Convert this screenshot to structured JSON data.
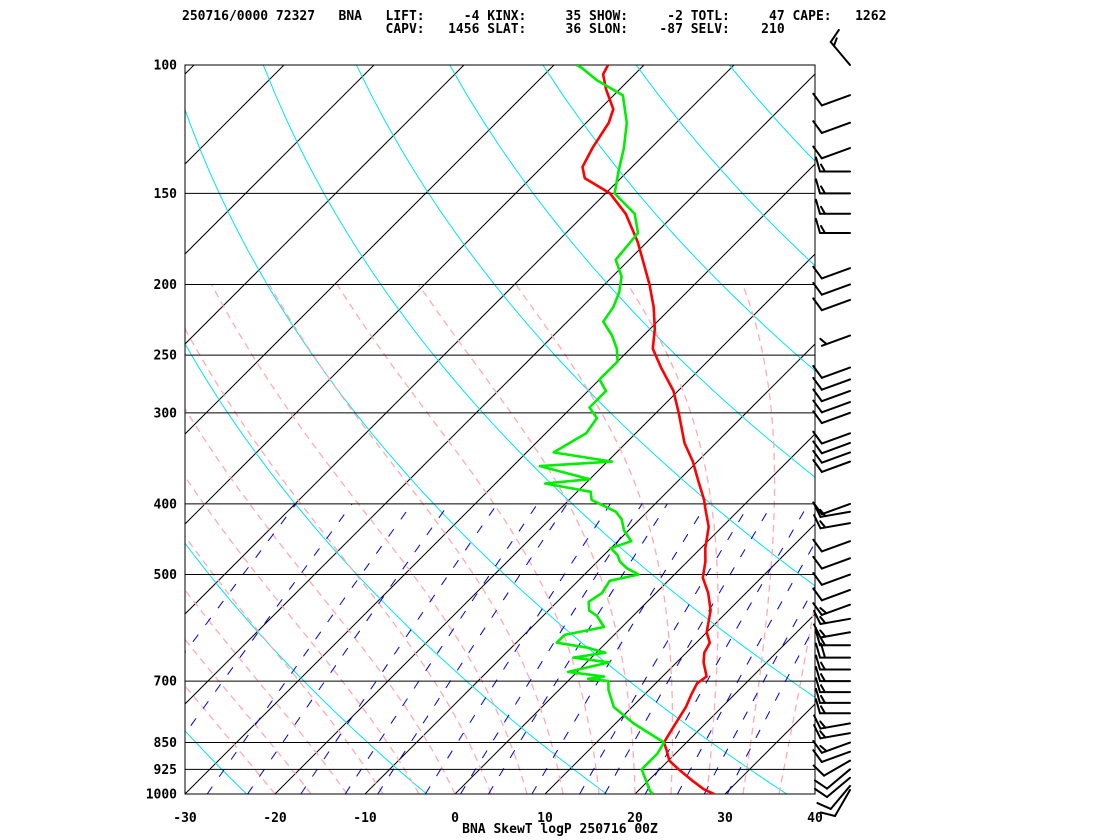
{
  "header": {
    "line1": "250716/0000 72327   BNA   LIFT:     -4 KINX:     35 SHOW:     -2 TOTL:     47 CAPE:   1262",
    "line2": "                          CAPV:   1456 SLAT:     36 SLON:    -87 SELV:    210"
  },
  "colors": {
    "temperature": "#ff0000",
    "dewpoint": "#00ee00",
    "isotherm": "#000000",
    "isobar": "#000000",
    "dry_adiabat": "#00e5ee",
    "moist_adiabat": "#ffaab4",
    "mixing_ratio": "#0000cc",
    "wind_barb": "#000000"
  },
  "chart_data": {
    "type": "line",
    "title": "BNA SkewT logP 250716 00Z",
    "xlabel": "",
    "ylabel": "",
    "xlim": [
      -30,
      40
    ],
    "ylim": [
      1000,
      100
    ],
    "y_scale": "log",
    "x_ticks": [
      "-30",
      "-20",
      "-10",
      "0",
      "10",
      "20",
      "30",
      "40"
    ],
    "y_ticks": [
      "100",
      "150",
      "200",
      "250",
      "300",
      "400",
      "500",
      "700",
      "850",
      "925",
      "1000"
    ],
    "grid": true,
    "series": [
      {
        "role": "temperature",
        "points": [
          [
            1000,
            28.8
          ],
          [
            985,
            27.1
          ],
          [
            960,
            25.0
          ],
          [
            925,
            22.1
          ],
          [
            900,
            20.1
          ],
          [
            870,
            18.6
          ],
          [
            850,
            17.5
          ],
          [
            820,
            17.0
          ],
          [
            790,
            16.5
          ],
          [
            760,
            16.0
          ],
          [
            730,
            15.2
          ],
          [
            705,
            14.6
          ],
          [
            690,
            14.9
          ],
          [
            660,
            13.0
          ],
          [
            640,
            12.0
          ],
          [
            620,
            11.5
          ],
          [
            600,
            10.0
          ],
          [
            560,
            8.0
          ],
          [
            530,
            5.8
          ],
          [
            505,
            3.5
          ],
          [
            480,
            2.0
          ],
          [
            460,
            0.5
          ],
          [
            430,
            -1.5
          ],
          [
            405,
            -4.0
          ],
          [
            395,
            -5.0
          ],
          [
            370,
            -8.0
          ],
          [
            350,
            -10.5
          ],
          [
            330,
            -13.5
          ],
          [
            300,
            -17.5
          ],
          [
            280,
            -20.5
          ],
          [
            260,
            -24.5
          ],
          [
            245,
            -27.5
          ],
          [
            230,
            -29.5
          ],
          [
            215,
            -32.0
          ],
          [
            200,
            -35.0
          ],
          [
            185,
            -38.5
          ],
          [
            175,
            -41.0
          ],
          [
            160,
            -45.5
          ],
          [
            150,
            -49.5
          ],
          [
            143,
            -54.0
          ],
          [
            138,
            -55.5
          ],
          [
            130,
            -56.5
          ],
          [
            120,
            -57.5
          ],
          [
            115,
            -58.5
          ],
          [
            108,
            -61.5
          ],
          [
            103,
            -63.5
          ],
          [
            100,
            -64.0
          ]
        ]
      },
      {
        "role": "dewpoint",
        "points": [
          [
            1000,
            22.0
          ],
          [
            990,
            21.3
          ],
          [
            925,
            18.0
          ],
          [
            880,
            18.0
          ],
          [
            850,
            17.5
          ],
          [
            800,
            12.0
          ],
          [
            760,
            8.0
          ],
          [
            720,
            5.5
          ],
          [
            700,
            4.5
          ],
          [
            695,
            2.0
          ],
          [
            690,
            3.5
          ],
          [
            680,
            -1.0
          ],
          [
            660,
            2.5
          ],
          [
            650,
            -2.0
          ],
          [
            640,
            1.0
          ],
          [
            630,
            -1.5
          ],
          [
            620,
            -5.5
          ],
          [
            605,
            -5.5
          ],
          [
            590,
            -2.0
          ],
          [
            570,
            -4.0
          ],
          [
            560,
            -5.5
          ],
          [
            545,
            -6.5
          ],
          [
            530,
            -6.0
          ],
          [
            510,
            -6.5
          ],
          [
            500,
            -4.0
          ],
          [
            490,
            -6.0
          ],
          [
            480,
            -7.5
          ],
          [
            470,
            -8.5
          ],
          [
            460,
            -10.0
          ],
          [
            450,
            -8.5
          ],
          [
            435,
            -10.5
          ],
          [
            420,
            -12.0
          ],
          [
            410,
            -13.5
          ],
          [
            395,
            -17.5
          ],
          [
            385,
            -18.5
          ],
          [
            375,
            -24.5
          ],
          [
            370,
            -20.0
          ],
          [
            355,
            -27.0
          ],
          [
            350,
            -19.5
          ],
          [
            340,
            -27.0
          ],
          [
            320,
            -25.5
          ],
          [
            305,
            -26.0
          ],
          [
            295,
            -28.0
          ],
          [
            280,
            -28.0
          ],
          [
            270,
            -30.0
          ],
          [
            255,
            -30.0
          ],
          [
            245,
            -31.5
          ],
          [
            235,
            -33.5
          ],
          [
            225,
            -36.0
          ],
          [
            215,
            -36.5
          ],
          [
            205,
            -37.5
          ],
          [
            195,
            -39.0
          ],
          [
            185,
            -41.5
          ],
          [
            170,
            -42.0
          ],
          [
            160,
            -44.5
          ],
          [
            150,
            -49.0
          ],
          [
            140,
            -51.0
          ],
          [
            130,
            -53.0
          ],
          [
            120,
            -55.5
          ],
          [
            110,
            -59.0
          ],
          [
            105,
            -63.5
          ],
          [
            101,
            -66.5
          ],
          [
            100,
            -67.5
          ]
        ]
      }
    ],
    "wind_barbs": [
      {
        "p": 1000,
        "dir": 210,
        "spd": 10
      },
      {
        "p": 975,
        "dir": 220,
        "spd": 10
      },
      {
        "p": 950,
        "dir": 230,
        "spd": 10
      },
      {
        "p": 925,
        "dir": 230,
        "spd": 10
      },
      {
        "p": 900,
        "dir": 240,
        "spd": 10
      },
      {
        "p": 875,
        "dir": 250,
        "spd": 10
      },
      {
        "p": 850,
        "dir": 250,
        "spd": 15
      },
      {
        "p": 825,
        "dir": 260,
        "spd": 15
      },
      {
        "p": 800,
        "dir": 260,
        "spd": 15
      },
      {
        "p": 775,
        "dir": 270,
        "spd": 15
      },
      {
        "p": 750,
        "dir": 270,
        "spd": 15
      },
      {
        "p": 725,
        "dir": 270,
        "spd": 15
      },
      {
        "p": 700,
        "dir": 270,
        "spd": 15
      },
      {
        "p": 675,
        "dir": 270,
        "spd": 15
      },
      {
        "p": 650,
        "dir": 270,
        "spd": 20
      },
      {
        "p": 625,
        "dir": 270,
        "spd": 15
      },
      {
        "p": 600,
        "dir": 260,
        "spd": 15
      },
      {
        "p": 575,
        "dir": 260,
        "spd": 15
      },
      {
        "p": 550,
        "dir": 250,
        "spd": 15
      },
      {
        "p": 525,
        "dir": 250,
        "spd": 10
      },
      {
        "p": 500,
        "dir": 250,
        "spd": 10
      },
      {
        "p": 475,
        "dir": 250,
        "spd": 10
      },
      {
        "p": 450,
        "dir": 250,
        "spd": 10
      },
      {
        "p": 425,
        "dir": 260,
        "spd": 15
      },
      {
        "p": 410,
        "dir": 260,
        "spd": 15
      },
      {
        "p": 400,
        "dir": 250,
        "spd": 10
      },
      {
        "p": 350,
        "dir": 250,
        "spd": 10
      },
      {
        "p": 340,
        "dir": 250,
        "spd": 10
      },
      {
        "p": 330,
        "dir": 250,
        "spd": 10
      },
      {
        "p": 320,
        "dir": 250,
        "spd": 10
      },
      {
        "p": 300,
        "dir": 250,
        "spd": 10
      },
      {
        "p": 290,
        "dir": 250,
        "spd": 10
      },
      {
        "p": 280,
        "dir": 250,
        "spd": 10
      },
      {
        "p": 270,
        "dir": 250,
        "spd": 10
      },
      {
        "p": 260,
        "dir": 250,
        "spd": 10
      },
      {
        "p": 235,
        "dir": 250,
        "spd": 5
      },
      {
        "p": 210,
        "dir": 250,
        "spd": 10
      },
      {
        "p": 200,
        "dir": 250,
        "spd": 10
      },
      {
        "p": 190,
        "dir": 250,
        "spd": 10
      },
      {
        "p": 170,
        "dir": 270,
        "spd": 15
      },
      {
        "p": 160,
        "dir": 270,
        "spd": 15
      },
      {
        "p": 150,
        "dir": 270,
        "spd": 15
      },
      {
        "p": 140,
        "dir": 270,
        "spd": 15
      },
      {
        "p": 130,
        "dir": 250,
        "spd": 10
      },
      {
        "p": 120,
        "dir": 250,
        "spd": 10
      },
      {
        "p": 110,
        "dir": 250,
        "spd": 10
      },
      {
        "p": 100,
        "dir": 320,
        "spd": 15
      }
    ]
  }
}
